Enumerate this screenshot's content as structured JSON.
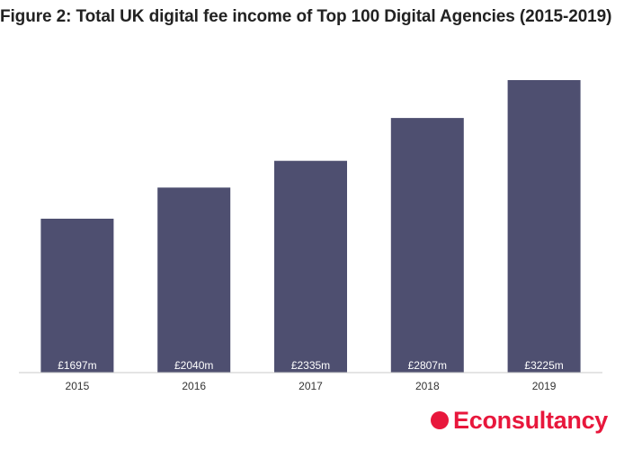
{
  "chart_data": {
    "type": "bar",
    "title": "Figure 2: Total UK digital fee income of Top 100 Digital Agencies (2015-2019)",
    "categories": [
      "2015",
      "2016",
      "2017",
      "2018",
      "2019"
    ],
    "values": [
      1697,
      2040,
      2335,
      2807,
      3225
    ],
    "data_labels": [
      "£1697m",
      "£2040m",
      "£2335m",
      "£2807m",
      "£3225m"
    ],
    "unit": "£m",
    "xlabel": "",
    "ylabel": "",
    "ylim": [
      0,
      3225
    ],
    "grid": false,
    "legend": "none"
  },
  "colors": {
    "bar": "#4e4f70",
    "bar_label": "#ffffff",
    "axis": "#c8c8c8",
    "tick_text": "#333333",
    "brand": "#e8173c"
  },
  "brand": {
    "name": "Econsultancy",
    "icon": "brand-dot-icon"
  }
}
